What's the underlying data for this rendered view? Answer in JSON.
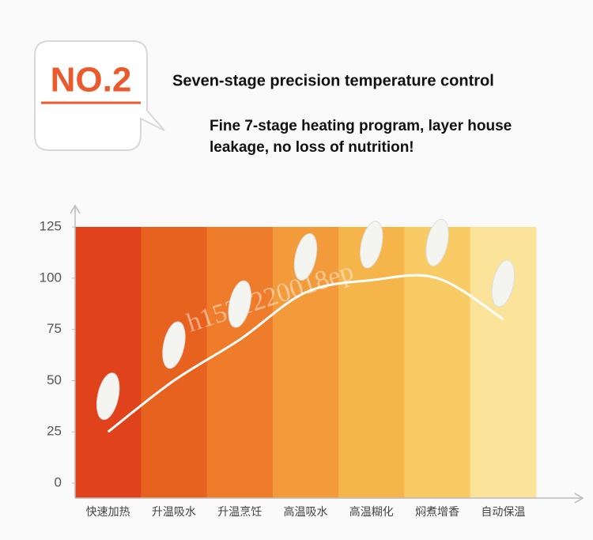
{
  "header": {
    "badge": "NO.2",
    "title": "Seven-stage precision temperature control",
    "subtitle": [
      "Fine 7-stage heating program, layer house",
      "leakage, no loss of nutrition!"
    ]
  },
  "chart_data": {
    "type": "line",
    "categories": [
      "快速加热",
      "升温吸水",
      "升温烹饪",
      "高温吸水",
      "高温糊化",
      "焖煮增香",
      "自动保温"
    ],
    "values": [
      25,
      50,
      70,
      93,
      99,
      100,
      80
    ],
    "color": "#ffffff",
    "band_colors": [
      "#e0421c",
      "#e8621f",
      "#ef7c2a",
      "#f39a3a",
      "#f6b54b",
      "#f9cb64",
      "#fbe39a"
    ],
    "ylim": [
      0,
      125
    ],
    "yticks": [
      0,
      25,
      50,
      75,
      100,
      125
    ],
    "watermark": "h1521220018ep"
  }
}
